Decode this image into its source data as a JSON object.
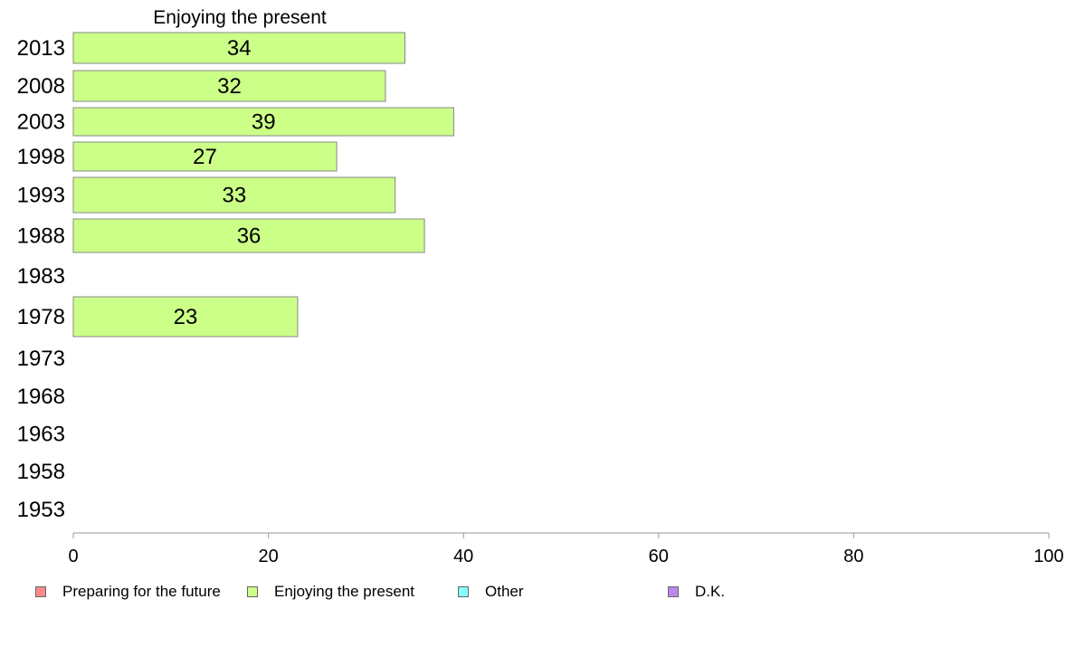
{
  "chart_data": {
    "type": "bar",
    "orientation": "horizontal",
    "title": "Enjoying the present",
    "categories": [
      "2013",
      "2008",
      "2003",
      "1998",
      "1993",
      "1988",
      "1983",
      "1978",
      "1973",
      "1968",
      "1963",
      "1958",
      "1953"
    ],
    "series": [
      {
        "name": "Enjoying the present",
        "color": "#ccff88",
        "values": [
          34,
          32,
          39,
          27,
          33,
          36,
          null,
          23,
          null,
          null,
          null,
          null,
          null
        ]
      }
    ],
    "xlim": [
      0,
      100
    ],
    "xticks": [
      "0",
      "20",
      "40",
      "60",
      "80",
      "100"
    ],
    "grid": false,
    "legend_position": "bottom"
  },
  "legend": [
    {
      "label": "Preparing for the future",
      "color": "#ff8a8a"
    },
    {
      "label": "Enjoying the present",
      "color": "#ccff88"
    },
    {
      "label": "Other",
      "color": "#88ffff"
    },
    {
      "label": "D.K.",
      "color": "#bb88ee"
    }
  ]
}
